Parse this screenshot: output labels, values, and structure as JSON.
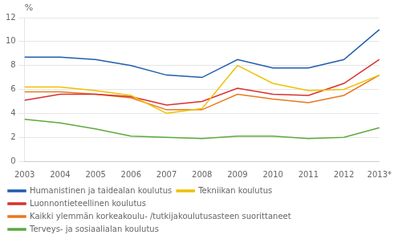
{
  "chart_data": {
    "type": "line",
    "ylabel": "%",
    "categories": [
      "2003",
      "2004",
      "2005",
      "2006",
      "2007",
      "2008",
      "2009",
      "2010",
      "2011",
      "2012",
      "2013*"
    ],
    "series": [
      {
        "name": "Humanistinen ja taidealan koulutus",
        "color": "#1f5ead",
        "values": [
          8.7,
          8.7,
          8.5,
          8.0,
          7.2,
          7.0,
          8.5,
          7.8,
          7.8,
          8.5,
          11.0
        ]
      },
      {
        "name": "Tekniikan koulutus",
        "color": "#f0c000",
        "values": [
          6.2,
          6.2,
          5.9,
          5.5,
          4.0,
          4.4,
          8.0,
          6.5,
          5.9,
          6.0,
          7.2
        ]
      },
      {
        "name": "Luonnontieteellinen koulutus",
        "color": "#d93030",
        "values": [
          5.1,
          5.6,
          5.6,
          5.4,
          4.7,
          5.0,
          6.1,
          5.6,
          5.5,
          6.5,
          8.5
        ]
      },
      {
        "name": "Kaikki ylemmän korkeakoulu- /tutkijakoulutusasteen suorittaneet",
        "color": "#e87820",
        "values": [
          5.8,
          5.8,
          5.6,
          5.3,
          4.3,
          4.3,
          5.6,
          5.2,
          4.9,
          5.5,
          7.2
        ]
      },
      {
        "name": "Terveys- ja sosiaalialan koulutus",
        "color": "#5caa3c",
        "values": [
          3.5,
          3.2,
          2.7,
          2.1,
          2.0,
          1.9,
          2.1,
          2.1,
          1.9,
          2.0,
          2.8
        ]
      }
    ],
    "ylim": [
      0,
      12
    ],
    "yticks": [
      0,
      2,
      4,
      6,
      8,
      10,
      12
    ],
    "grid": true,
    "legend": "bottom"
  }
}
